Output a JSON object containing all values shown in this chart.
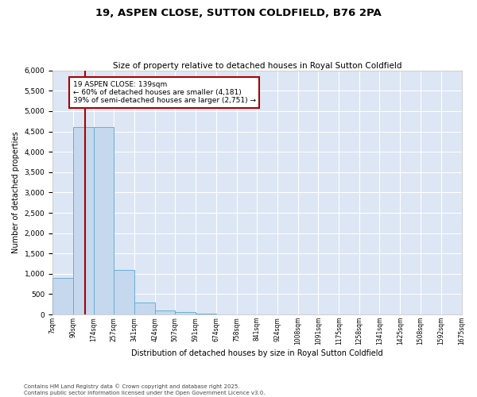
{
  "title": "19, ASPEN CLOSE, SUTTON COLDFIELD, B76 2PA",
  "subtitle": "Size of property relative to detached houses in Royal Sutton Coldfield",
  "xlabel": "Distribution of detached houses by size in Royal Sutton Coldfield",
  "ylabel": "Number of detached properties",
  "bar_color": "#c5d8ed",
  "bar_edge_color": "#6aaed6",
  "background_color": "#dce6f5",
  "grid_color": "#ffffff",
  "annotation_text": "19 ASPEN CLOSE: 139sqm\n← 60% of detached houses are smaller (4,181)\n39% of semi-detached houses are larger (2,751) →",
  "vline_x": 139,
  "vline_color": "#aa0000",
  "footer": "Contains HM Land Registry data © Crown copyright and database right 2025.\nContains public sector information licensed under the Open Government Licence v3.0.",
  "bins": [
    7,
    90,
    174,
    257,
    341,
    424,
    507,
    591,
    674,
    758,
    841,
    924,
    1008,
    1091,
    1175,
    1258,
    1341,
    1425,
    1508,
    1592,
    1675
  ],
  "bin_labels": [
    "7sqm",
    "90sqm",
    "174sqm",
    "257sqm",
    "341sqm",
    "424sqm",
    "507sqm",
    "591sqm",
    "674sqm",
    "758sqm",
    "841sqm",
    "924sqm",
    "1008sqm",
    "1091sqm",
    "1175sqm",
    "1258sqm",
    "1341sqm",
    "1425sqm",
    "1508sqm",
    "1592sqm",
    "1675sqm"
  ],
  "bar_heights": [
    900,
    4600,
    4600,
    1100,
    300,
    100,
    50,
    20,
    10,
    5,
    3,
    2,
    1,
    1,
    1,
    0,
    0,
    0,
    0,
    0
  ],
  "ylim": [
    0,
    6000
  ],
  "yticks": [
    0,
    500,
    1000,
    1500,
    2000,
    2500,
    3000,
    3500,
    4000,
    4500,
    5000,
    5500,
    6000
  ]
}
